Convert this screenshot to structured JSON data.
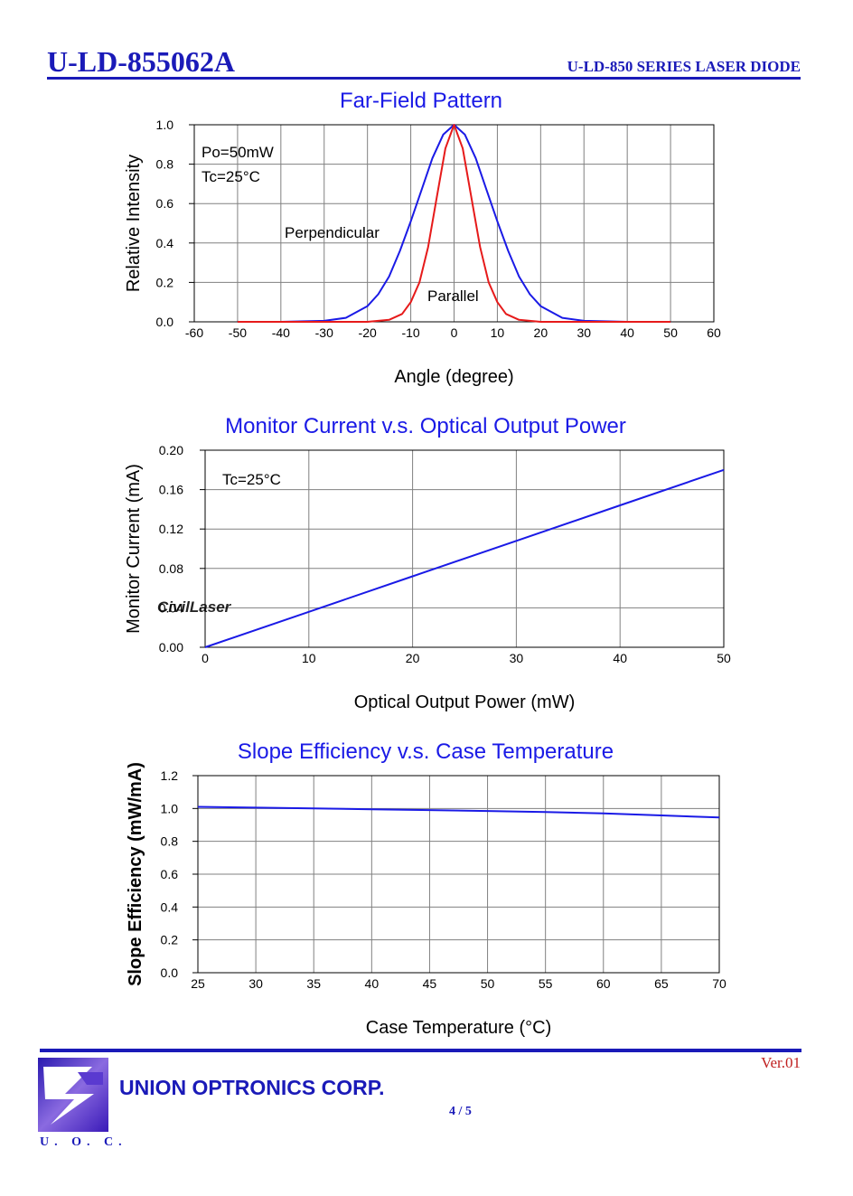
{
  "header": {
    "part_number": "U-LD-855062A",
    "series_title": "U-LD-850 SERIES LASER DIODE"
  },
  "footer": {
    "version": "Ver.01",
    "company": "UNION OPTRONICS CORP.",
    "page": "4 / 5",
    "logo_abbr": "U. O. C."
  },
  "watermark": "CivilLaser",
  "colors": {
    "blue_series": "#1a1ae6",
    "red_series": "#e61a1a",
    "brand": "#1a1ab8"
  },
  "chart_data": [
    {
      "type": "line",
      "title": "Far-Field Pattern",
      "xlabel": "Angle (degree)",
      "ylabel": "Relative Intensity",
      "xlim": [
        -60,
        60
      ],
      "ylim": [
        0,
        1.0
      ],
      "xticks": [
        "-60",
        "-50",
        "-40",
        "-30",
        "-20",
        "-10",
        "0",
        "10",
        "20",
        "30",
        "40",
        "50",
        "60"
      ],
      "yticks": [
        "0.0",
        "0.2",
        "0.4",
        "0.6",
        "0.8",
        "1.0"
      ],
      "grid": true,
      "annotations": [
        "Po=50mW",
        "Tc=25°C"
      ],
      "series": [
        {
          "name": "Perpendicular",
          "color": "#1a1ae6",
          "x": [
            -50,
            -40,
            -30,
            -25,
            -20,
            -17.5,
            -15,
            -12.5,
            -10,
            -7.5,
            -5,
            -2.5,
            0,
            2.5,
            5,
            7.5,
            10,
            12.5,
            15,
            17.5,
            20,
            25,
            30,
            40,
            50
          ],
          "y": [
            0.0,
            0.0,
            0.005,
            0.02,
            0.08,
            0.14,
            0.23,
            0.36,
            0.51,
            0.67,
            0.83,
            0.95,
            1.0,
            0.95,
            0.83,
            0.67,
            0.51,
            0.36,
            0.23,
            0.14,
            0.08,
            0.02,
            0.005,
            0.0,
            0.0
          ]
        },
        {
          "name": "Parallel",
          "color": "#e61a1a",
          "x": [
            -50,
            -20,
            -15,
            -12,
            -10,
            -8,
            -6,
            -4,
            -2,
            0,
            2,
            4,
            6,
            8,
            10,
            12,
            15,
            20,
            50
          ],
          "y": [
            0.0,
            0.0,
            0.01,
            0.04,
            0.1,
            0.2,
            0.38,
            0.63,
            0.88,
            1.0,
            0.88,
            0.63,
            0.38,
            0.2,
            0.1,
            0.04,
            0.01,
            0.0,
            0.0
          ]
        }
      ]
    },
    {
      "type": "line",
      "title": "Monitor Current v.s. Optical Output Power",
      "xlabel": "Optical Output Power (mW)",
      "ylabel": "Monitor Current (mA)",
      "xlim": [
        0,
        50
      ],
      "ylim": [
        0,
        0.2
      ],
      "xticks": [
        "0",
        "10",
        "20",
        "30",
        "40",
        "50"
      ],
      "yticks": [
        "0.00",
        "0.04",
        "0.08",
        "0.12",
        "0.16",
        "0.20"
      ],
      "grid": true,
      "annotations": [
        "Tc=25°C"
      ],
      "series": [
        {
          "color": "#1a1ae6",
          "x": [
            0,
            10,
            20,
            30,
            40,
            50
          ],
          "y": [
            0.0,
            0.036,
            0.072,
            0.108,
            0.144,
            0.18
          ]
        }
      ]
    },
    {
      "type": "line",
      "title": "Slope Efficiency v.s. Case Temperature",
      "xlabel": "Case Temperature (°C)",
      "ylabel": "Slope Efficiency (mW/mA)",
      "xlim": [
        25,
        70
      ],
      "ylim": [
        0,
        1.2
      ],
      "xticks": [
        "25",
        "30",
        "35",
        "40",
        "45",
        "50",
        "55",
        "60",
        "65",
        "70"
      ],
      "yticks": [
        "0.0",
        "0.2",
        "0.4",
        "0.6",
        "0.8",
        "1.0",
        "1.2"
      ],
      "grid": true,
      "series": [
        {
          "color": "#1a1ae6",
          "x": [
            25,
            30,
            35,
            40,
            45,
            50,
            55,
            60,
            65,
            70
          ],
          "y": [
            1.01,
            1.005,
            1.0,
            0.995,
            0.99,
            0.985,
            0.978,
            0.97,
            0.958,
            0.945
          ]
        }
      ]
    }
  ]
}
